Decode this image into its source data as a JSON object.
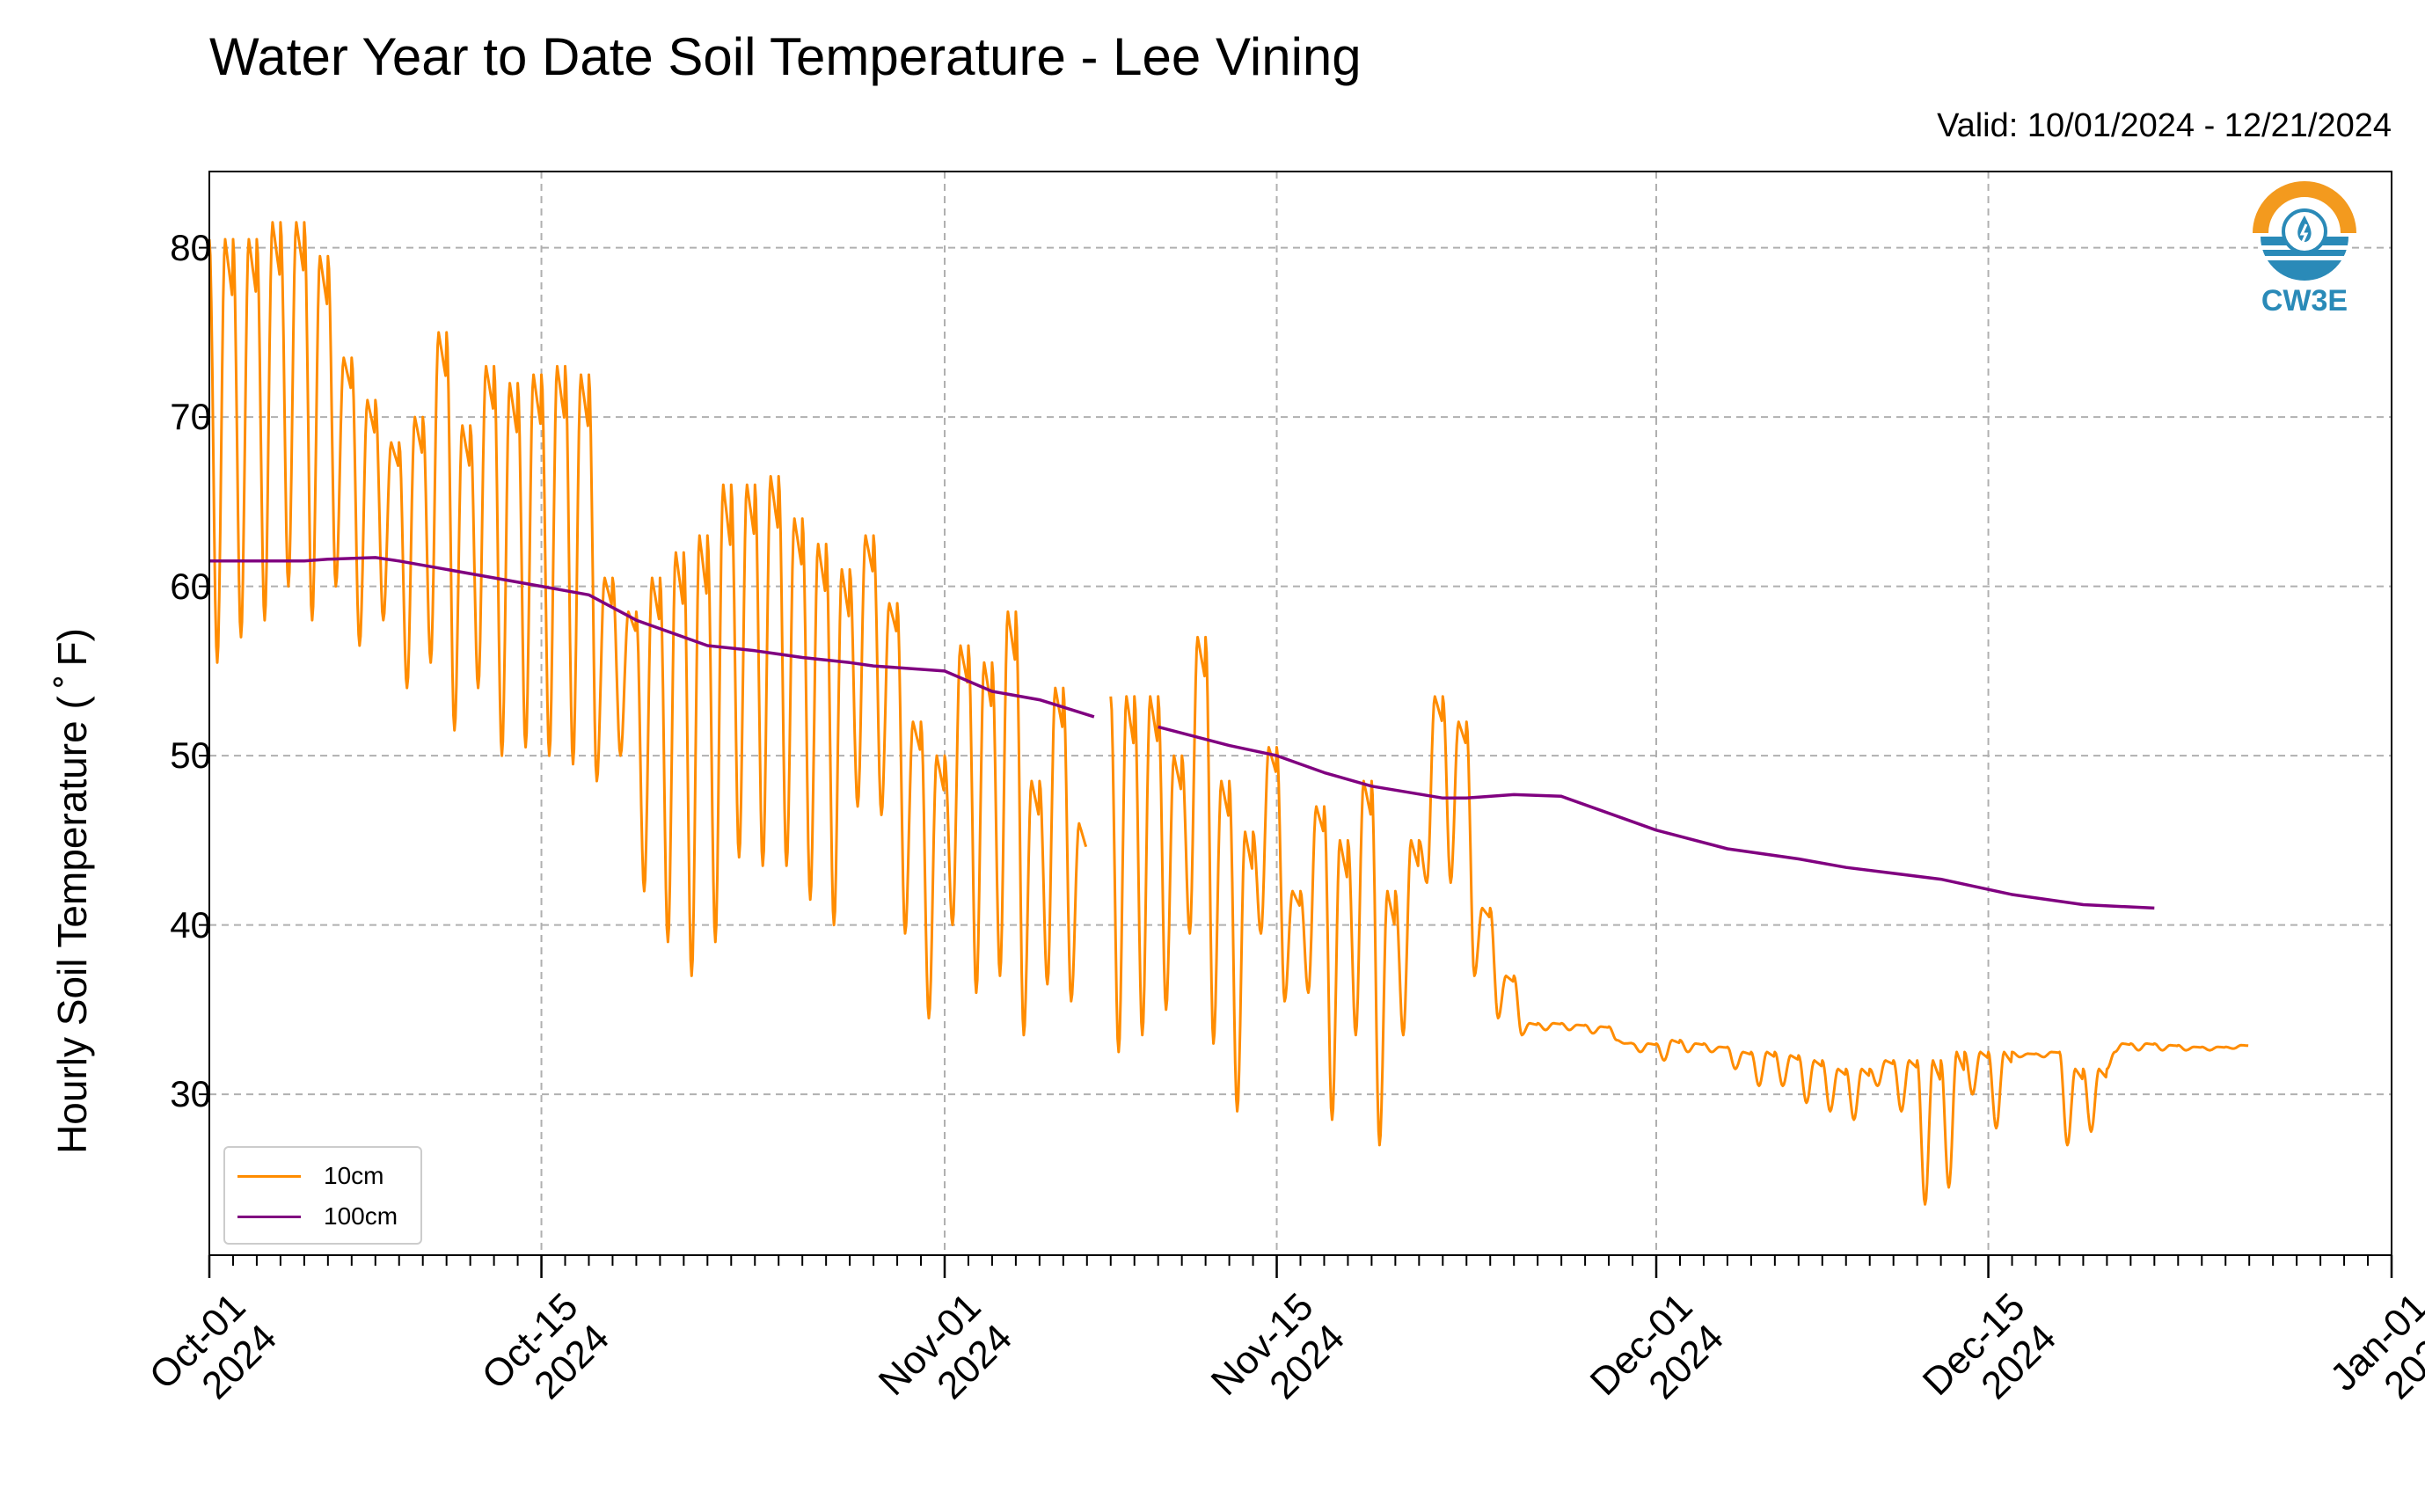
{
  "title": "Water Year to Date Soil Temperature - Lee Vining",
  "valid_text": "Valid: 10/01/2024 - 12/21/2024",
  "ylabel": "Hourly Soil Temperature ( ˚ F)",
  "logo_text": "CW3E",
  "legend": [
    {
      "label": "10cm",
      "color": "#ff8c00"
    },
    {
      "label": "100cm",
      "color": "#800080"
    }
  ],
  "x_ticks": [
    {
      "day": 0,
      "line1": "Oct-01",
      "line2": "2024"
    },
    {
      "day": 14,
      "line1": "Oct-15",
      "line2": "2024"
    },
    {
      "day": 31,
      "line1": "Nov-01",
      "line2": "2024"
    },
    {
      "day": 45,
      "line1": "Nov-15",
      "line2": "2024"
    },
    {
      "day": 61,
      "line1": "Dec-01",
      "line2": "2024"
    },
    {
      "day": 75,
      "line1": "Dec-15",
      "line2": "2024"
    },
    {
      "day": 92,
      "line1": "Jan-01",
      "line2": "2025"
    }
  ],
  "y_ticks": [
    "30",
    "40",
    "50",
    "60",
    "70",
    "80"
  ],
  "chart_data": {
    "type": "line",
    "x_start": "2024-10-01",
    "x_unit": "days since 2024-10-01",
    "xlim": [
      0,
      92
    ],
    "ylim": [
      20.5,
      84.5
    ],
    "grid": true,
    "legend_position": "lower-left",
    "series": [
      {
        "name": "10cm",
        "color": "#ff8c00",
        "daily_min": [
          55.5,
          57.0,
          58.0,
          60.0,
          58.0,
          60.0,
          56.5,
          58.0,
          54.0,
          55.5,
          51.5,
          54.0,
          50.0,
          50.5,
          50.0,
          49.5,
          48.5,
          50.0,
          42.0,
          39.0,
          37.0,
          39.0,
          44.0,
          43.5,
          43.5,
          41.5,
          40.0,
          47.0,
          46.5,
          39.5,
          34.5,
          40.0,
          36.0,
          37.0,
          33.5,
          36.5,
          35.5,
          null,
          32.5,
          33.5,
          35.0,
          39.5,
          33.0,
          29.0,
          39.5,
          35.5,
          36.0,
          28.5,
          33.5,
          27.0,
          33.5,
          42.5,
          42.5,
          37.0,
          34.5,
          33.5,
          33.8,
          33.8,
          33.6,
          33.2,
          32.5,
          32.0,
          32.5,
          32.5,
          31.5,
          30.5,
          30.5,
          29.5,
          29.0,
          28.5,
          30.5,
          29.0,
          23.5,
          24.5,
          30.0,
          28.0,
          32.2,
          32.2,
          27.0,
          27.8,
          32.5,
          32.6,
          32.6,
          32.6,
          32.6,
          32.7
        ],
        "daily_max": [
          80.5,
          80.5,
          81.5,
          81.5,
          79.5,
          73.5,
          71.0,
          68.5,
          70.0,
          75.0,
          69.5,
          73.0,
          72.0,
          72.5,
          73.0,
          72.5,
          60.5,
          58.5,
          60.5,
          62.0,
          63.0,
          66.0,
          66.0,
          66.5,
          64.0,
          62.5,
          61.0,
          63.0,
          59.0,
          52.0,
          50.0,
          56.5,
          55.5,
          58.5,
          48.5,
          54.0,
          46.0,
          null,
          53.5,
          53.5,
          50.0,
          57.0,
          48.5,
          45.5,
          50.5,
          42.0,
          47.0,
          45.0,
          48.5,
          42.0,
          45.0,
          53.5,
          52.0,
          41.0,
          37.0,
          34.2,
          34.2,
          34.1,
          34.0,
          33.0,
          33.0,
          33.2,
          33.0,
          32.8,
          32.5,
          32.5,
          32.3,
          32.0,
          31.5,
          31.5,
          32.0,
          32.0,
          32.0,
          32.5,
          32.5,
          32.5,
          32.4,
          32.5,
          31.5,
          31.5,
          33.0,
          33.0,
          32.9,
          32.8,
          32.8,
          32.9
        ]
      },
      {
        "name": "100cm",
        "color": "#800080",
        "x": [
          0,
          4,
          5,
          7,
          8,
          12,
          14,
          16,
          18,
          21,
          23,
          25,
          27,
          28,
          31,
          33,
          35,
          37.3,
          38,
          40,
          43,
          45,
          47,
          49,
          52,
          53,
          55,
          57,
          61,
          64,
          67,
          69,
          73,
          76,
          79,
          82
        ],
        "values": [
          61.5,
          61.5,
          61.6,
          61.7,
          61.5,
          60.5,
          60.0,
          59.5,
          58.0,
          56.5,
          56.2,
          55.8,
          55.5,
          55.3,
          55.0,
          53.8,
          53.3,
          52.3,
          null,
          51.7,
          50.6,
          50.0,
          49.0,
          48.2,
          47.5,
          47.5,
          47.7,
          47.6,
          45.6,
          44.5,
          43.9,
          43.4,
          42.7,
          41.8,
          41.2,
          41.0
        ]
      }
    ]
  }
}
